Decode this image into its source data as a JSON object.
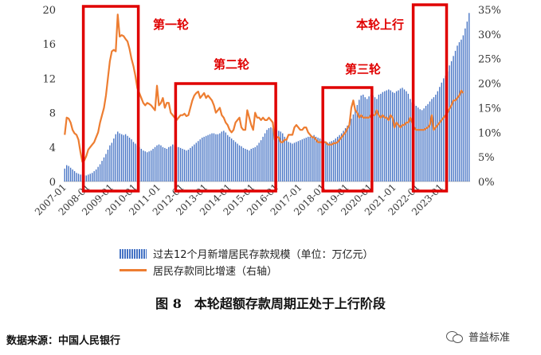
{
  "chart_data": {
    "type": "bar+line",
    "x_start": "2007-01",
    "x_end": "2023-03",
    "x_tick_labels": [
      "2007-01",
      "2008-01",
      "2009-01",
      "2010-01",
      "2011-01",
      "2012-01",
      "2013-01",
      "2014-01",
      "2015-01",
      "2016-01",
      "2017-01",
      "2018-01",
      "2019-01",
      "2020-01",
      "2021-01",
      "2022-01",
      "2023-01"
    ],
    "y_left_ticks": [
      "0",
      "4",
      "8",
      "12",
      "16",
      "20"
    ],
    "y_left_range": [
      0,
      20
    ],
    "y_right_ticks": [
      "0%",
      "5%",
      "10%",
      "15%",
      "20%",
      "25%",
      "30%",
      "35%"
    ],
    "y_right_range": [
      0,
      35
    ],
    "series": [
      {
        "name": "过去12个月新增居民存款规模（单位：万亿元）",
        "type": "bar",
        "axis": "left",
        "color": "#4472c4",
        "values": [
          1.5,
          1.9,
          1.8,
          1.6,
          1.4,
          1.2,
          1.0,
          0.9,
          0.8,
          0.8,
          0.7,
          0.7,
          0.8,
          0.9,
          1.0,
          1.2,
          1.4,
          1.7,
          2.0,
          2.4,
          2.8,
          3.2,
          3.7,
          4.2,
          4.5,
          5.0,
          5.5,
          5.8,
          5.6,
          5.5,
          5.4,
          5.5,
          5.3,
          5.1,
          4.9,
          4.6,
          4.4,
          4.2,
          4.0,
          3.8,
          3.6,
          3.5,
          3.4,
          3.5,
          3.6,
          3.8,
          4.0,
          4.2,
          4.3,
          4.2,
          4.0,
          3.9,
          3.8,
          4.0,
          4.1,
          4.3,
          4.2,
          4.0,
          4.0,
          3.9,
          3.8,
          3.7,
          3.6,
          3.7,
          3.9,
          4.1,
          4.3,
          4.5,
          4.7,
          4.9,
          5.1,
          5.2,
          5.3,
          5.4,
          5.5,
          5.6,
          5.6,
          5.5,
          5.5,
          5.6,
          5.8,
          5.9,
          5.7,
          5.4,
          5.2,
          5.0,
          4.8,
          4.6,
          4.4,
          4.2,
          4.1,
          3.9,
          3.8,
          3.7,
          3.6,
          3.8,
          3.9,
          4.0,
          4.2,
          4.5,
          4.8,
          5.2,
          5.6,
          6.0,
          6.2,
          6.3,
          6.2,
          6.1,
          6.0,
          5.9,
          5.8,
          5.6,
          5.2,
          4.8,
          4.6,
          4.5,
          4.4,
          4.5,
          4.6,
          4.7,
          4.8,
          4.9,
          5.0,
          5.1,
          5.2,
          5.2,
          5.3,
          5.4,
          5.2,
          5.1,
          5.0,
          4.9,
          4.8,
          4.6,
          4.5,
          4.6,
          4.7,
          4.8,
          5.0,
          5.2,
          5.4,
          5.6,
          5.9,
          6.2,
          6.5,
          6.9,
          7.3,
          7.8,
          8.3,
          8.9,
          9.5,
          10.0,
          10.1,
          9.8,
          9.6,
          9.9,
          10.1,
          10.0,
          9.8,
          9.6,
          10.1,
          10.2,
          10.4,
          10.5,
          10.6,
          10.7,
          10.6,
          10.4,
          10.3,
          10.5,
          10.6,
          10.8,
          10.9,
          10.7,
          10.5,
          10.2,
          9.6,
          9.2,
          9.0,
          8.8,
          8.6,
          8.4,
          8.3,
          8.5,
          8.8,
          9.0,
          9.3,
          9.6,
          9.8,
          10.1,
          10.5,
          11.0,
          11.5,
          12.0,
          12.3,
          12.8,
          13.5,
          14.0,
          14.6,
          15.2,
          15.8,
          16.2,
          16.5,
          17.0,
          17.8,
          18.6,
          19.6
        ]
      },
      {
        "name": "居民存款同比增速（右轴）",
        "type": "line",
        "axis": "right",
        "color": "#ed7d31",
        "values": [
          9.5,
          13.0,
          12.8,
          12.0,
          10.5,
          9.8,
          9.5,
          8.5,
          6.0,
          4.0,
          4.3,
          5.2,
          6.5,
          7.0,
          7.5,
          8.0,
          9.0,
          10.0,
          12.0,
          13.5,
          15.0,
          17.5,
          21.0,
          24.5,
          26.5,
          26.8,
          26.5,
          34.0,
          29.5,
          29.8,
          29.6,
          29.0,
          28.5,
          27.0,
          25.0,
          23.5,
          21.5,
          19.0,
          18.0,
          17.0,
          16.0,
          15.5,
          16.0,
          15.8,
          15.5,
          15.0,
          14.5,
          19.5,
          15.5,
          16.0,
          17.0,
          15.0,
          16.0,
          16.0,
          14.0,
          13.5,
          13.0,
          12.5,
          13.0,
          13.5,
          13.5,
          13.8,
          13.3,
          13.5,
          15.0,
          16.5,
          17.5,
          18.0,
          18.3,
          17.0,
          17.5,
          18.0,
          17.0,
          17.5,
          17.0,
          16.5,
          15.5,
          14.0,
          14.5,
          15.0,
          13.5,
          13.0,
          12.0,
          11.5,
          10.5,
          10.0,
          10.5,
          12.0,
          12.5,
          13.0,
          11.0,
          10.5,
          10.5,
          14.5,
          13.0,
          11.5,
          10.5,
          14.0,
          13.0,
          13.0,
          12.5,
          13.0,
          12.5,
          12.5,
          13.0,
          12.5,
          12.0,
          8.5,
          9.0,
          9.0,
          8.0,
          8.0,
          8.5,
          8.5,
          9.5,
          9.5,
          9.5,
          11.0,
          11.5,
          11.0,
          10.5,
          10.5,
          11.0,
          11.0,
          10.0,
          9.5,
          9.0,
          9.0,
          8.5,
          8.0,
          8.0,
          8.0,
          8.0,
          8.0,
          7.5,
          7.5,
          7.5,
          7.8,
          7.8,
          8.0,
          8.5,
          9.0,
          9.5,
          10.0,
          10.8,
          11.5,
          15.0,
          16.5,
          14.5,
          14.0,
          13.0,
          13.5,
          13.0,
          13.0,
          13.0,
          13.0,
          13.5,
          13.5,
          13.5,
          14.5,
          13.5,
          13.0,
          13.5,
          13.0,
          13.0,
          12.5,
          13.5,
          13.0,
          11.0,
          12.0,
          11.5,
          11.0,
          11.5,
          11.5,
          12.0,
          12.0,
          13.0,
          12.0,
          11.0,
          10.5,
          10.5,
          10.5,
          10.5,
          10.5,
          10.8,
          11.0,
          11.5,
          13.5,
          10.5,
          11.0,
          11.5,
          12.0,
          12.5,
          13.0,
          13.5,
          14.0,
          14.8,
          15.5,
          16.5,
          16.5,
          17.0,
          17.5,
          18.5,
          18.0
        ]
      }
    ],
    "annotations": [
      {
        "label": "第一轮",
        "from": "2007-11",
        "to": "2010-02",
        "color": "#e00000"
      },
      {
        "label": "第二轮",
        "from": "2011-10",
        "to": "2015-12",
        "color": "#e00000"
      },
      {
        "label": "第三轮",
        "from": "2018-01",
        "to": "2020-01",
        "color": "#e00000"
      },
      {
        "label": "本轮上行",
        "from": "2021-11",
        "to": "2023-03",
        "color": "#e00000"
      }
    ],
    "legend_position": "bottom"
  },
  "caption": "图 8　本轮超额存款周期正处于上行阶段",
  "source": "数据来源：中国人民银行",
  "watermark": "普益标准"
}
